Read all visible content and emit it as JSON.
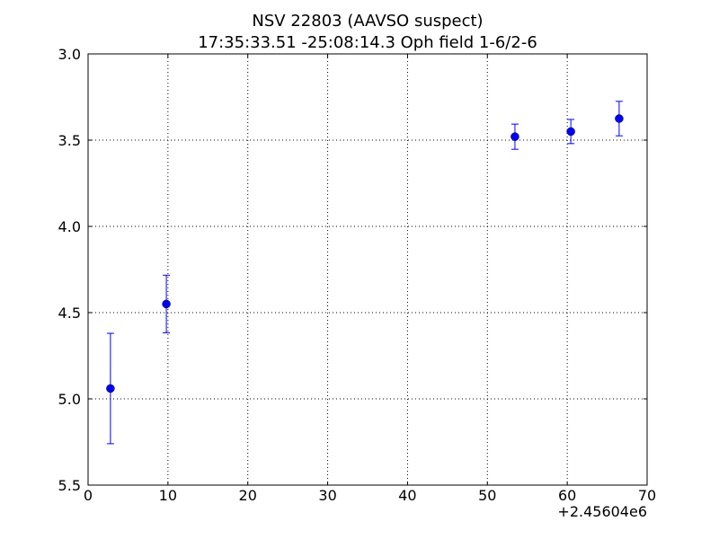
{
  "chart_data": {
    "type": "errorbar",
    "title": "NSV 22803 (AAVSO suspect)",
    "subtitle": "17:35:33.51 -25:08:14.3 Oph field 1-6/2-6",
    "x": [
      2.8,
      9.8,
      53.45,
      60.45,
      66.5
    ],
    "series": [
      {
        "color": "#0000ff",
        "values": [
          4.94,
          4.45,
          3.48,
          3.45,
          3.375
        ],
        "errors": [
          0.32,
          0.167,
          0.073,
          0.07,
          0.1
        ]
      }
    ],
    "xlim": [
      0,
      70
    ],
    "xticks": [
      0,
      10,
      20,
      30,
      40,
      50,
      60,
      70
    ],
    "x_offset_label": "+2.45604e6",
    "ylim": [
      3.0,
      5.5
    ],
    "y_inverted": true,
    "yticks": [
      {
        "value": 3.0,
        "label": "3.0"
      },
      {
        "value": 3.5,
        "label": "3.5"
      },
      {
        "value": 4.0,
        "label": "4.0"
      },
      {
        "value": 4.5,
        "label": "4.5"
      },
      {
        "value": 5.0,
        "label": "5.0"
      },
      {
        "value": 5.5,
        "label": "5.5"
      }
    ],
    "grid": true
  }
}
